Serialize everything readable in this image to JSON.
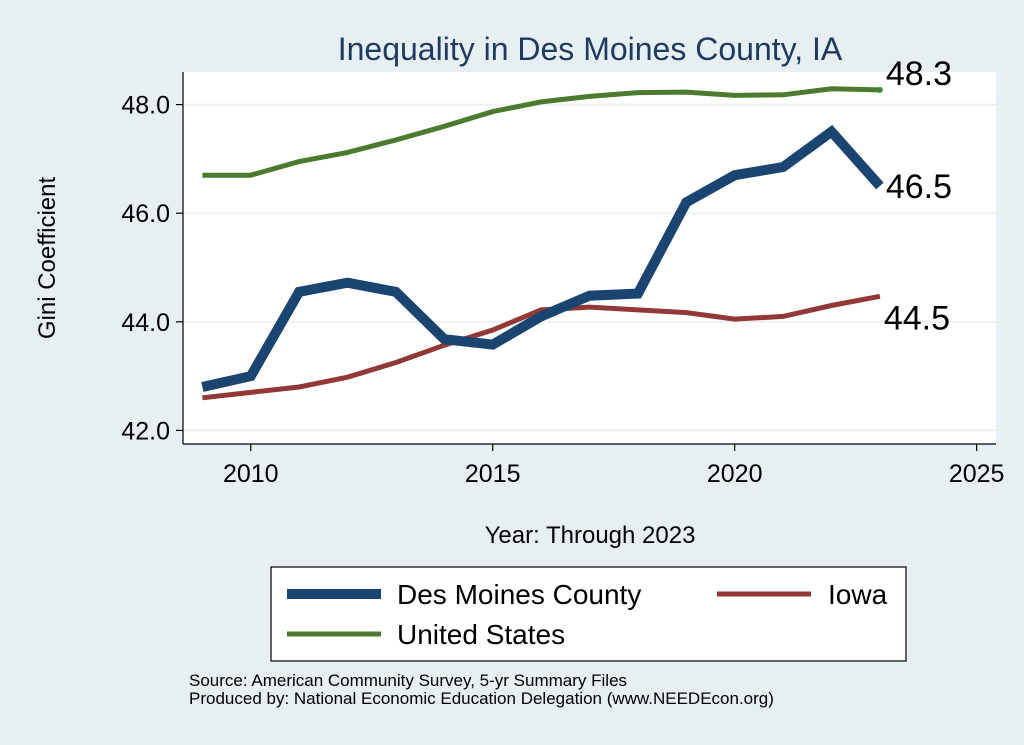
{
  "chart_data": {
    "type": "line",
    "title": "Inequality in Des Moines County, IA",
    "xlabel": "Year: Through 2023",
    "ylabel": "Gini Coefficient",
    "xlim": [
      2008.6,
      2025.4
    ],
    "ylim": [
      41.75,
      48.6
    ],
    "x_ticks": [
      2010,
      2015,
      2020,
      2025
    ],
    "x_tick_labels": [
      "2010",
      "2015",
      "2020",
      "2025"
    ],
    "y_ticks": [
      42,
      44,
      46,
      48
    ],
    "y_tick_labels": [
      "42.0",
      "44.0",
      "46.0",
      "48.0"
    ],
    "grid": true,
    "legend_position": "bottom",
    "series": [
      {
        "name": "Des Moines County",
        "color": "#1b4571",
        "stroke": "thick",
        "end_label": "46.5",
        "x": [
          2009,
          2010,
          2011,
          2012,
          2013,
          2014,
          2015,
          2016,
          2017,
          2018,
          2019,
          2020,
          2021,
          2022,
          2023
        ],
        "values": [
          42.8,
          43.0,
          44.55,
          44.72,
          44.55,
          43.68,
          43.58,
          44.1,
          44.48,
          44.52,
          46.2,
          46.7,
          46.85,
          47.5,
          46.5
        ]
      },
      {
        "name": "Iowa",
        "color": "#923838",
        "stroke": "medium",
        "end_label": "44.5",
        "x": [
          2009,
          2010,
          2011,
          2012,
          2013,
          2014,
          2015,
          2016,
          2017,
          2018,
          2019,
          2020,
          2021,
          2022,
          2023
        ],
        "values": [
          42.6,
          42.7,
          42.8,
          42.98,
          43.25,
          43.57,
          43.85,
          44.22,
          44.27,
          44.22,
          44.17,
          44.05,
          44.1,
          44.3,
          44.47
        ]
      },
      {
        "name": "United States",
        "color": "#4c7a2e",
        "stroke": "medium",
        "end_label": "48.3",
        "x": [
          2009,
          2010,
          2011,
          2012,
          2013,
          2014,
          2015,
          2016,
          2017,
          2018,
          2019,
          2020,
          2021,
          2022,
          2023
        ],
        "values": [
          46.7,
          46.7,
          46.95,
          47.12,
          47.35,
          47.6,
          47.87,
          48.05,
          48.15,
          48.22,
          48.23,
          48.17,
          48.18,
          48.29,
          48.27
        ]
      }
    ],
    "legend": [
      {
        "label": "Des Moines County",
        "series": 0
      },
      {
        "label": "Iowa",
        "series": 1
      },
      {
        "label": "United States",
        "series": 2
      }
    ]
  },
  "footer": {
    "source": "Source: American Community Survey, 5-yr Summary Files",
    "produced_by": "Produced by: National Economic Education Delegation (www.NEEDEcon.org)"
  }
}
